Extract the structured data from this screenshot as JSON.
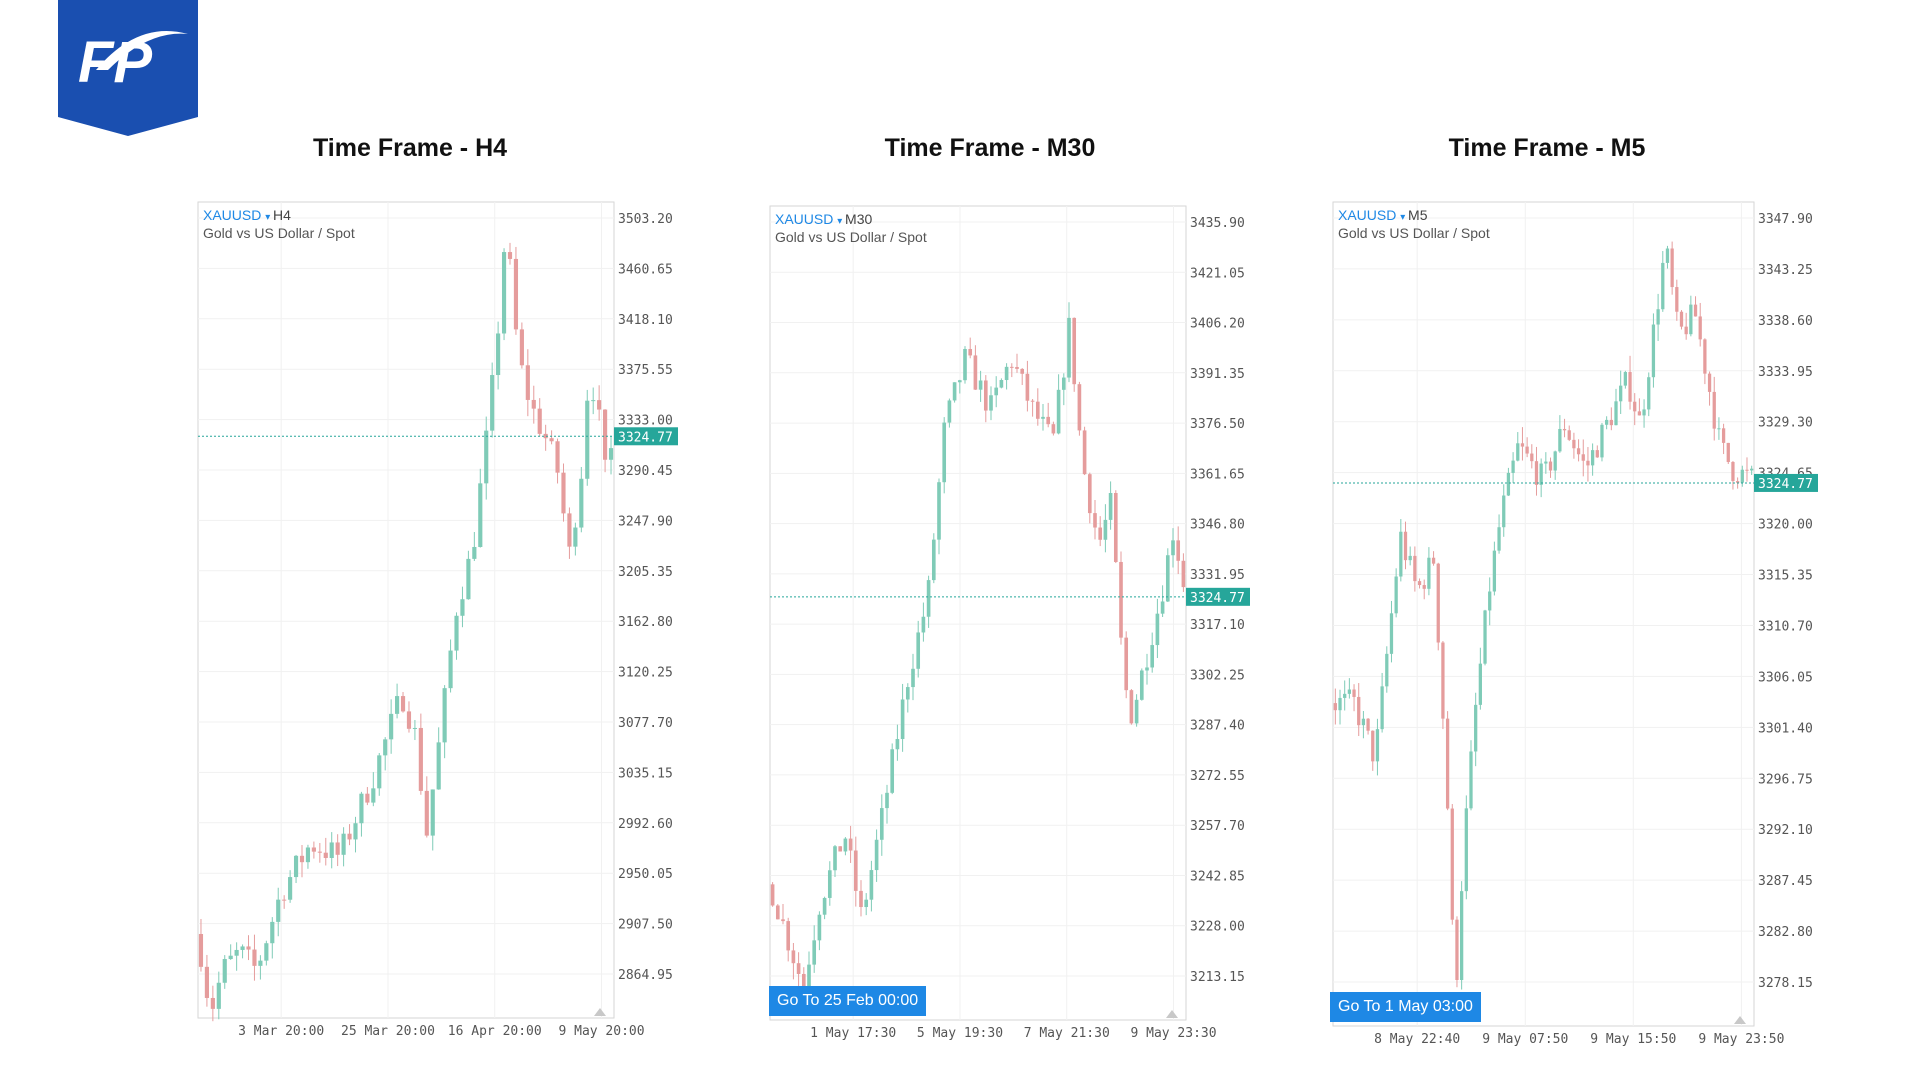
{
  "brand": {
    "logo_color": "#1a4fb0"
  },
  "colors": {
    "up": "#7fcbb7",
    "down": "#e59c9c",
    "price_tag": "#26a69a",
    "goto": "#1e88e5"
  },
  "chart_data": [
    {
      "type": "candlestick",
      "title": "Time Frame - H4",
      "symbol": "XAUUSD",
      "timeframe": "H4",
      "description": "Gold vs US Dollar / Spot",
      "current_price": 3324.77,
      "current_price_label": "3324.77",
      "y_ticks": [
        "3503.20",
        "3460.65",
        "3418.10",
        "3375.55",
        "3333.00",
        "3290.45",
        "3247.90",
        "3205.35",
        "3162.80",
        "3120.25",
        "3077.70",
        "3035.15",
        "2992.60",
        "2950.05",
        "2907.50",
        "2864.95"
      ],
      "x_ticks": [
        "3 Mar 20:00",
        "25 Mar 20:00",
        "16 Apr 20:00",
        "9 May 20:00"
      ],
      "ylim": [
        2840,
        3520
      ],
      "trend": [
        [
          0,
          2910
        ],
        [
          0.03,
          2845
        ],
        [
          0.06,
          2880
        ],
        [
          0.1,
          2895
        ],
        [
          0.14,
          2880
        ],
        [
          0.2,
          2945
        ],
        [
          0.27,
          2985
        ],
        [
          0.34,
          2975
        ],
        [
          0.42,
          3040
        ],
        [
          0.49,
          3110
        ],
        [
          0.52,
          3080
        ],
        [
          0.55,
          2995
        ],
        [
          0.58,
          3070
        ],
        [
          0.62,
          3180
        ],
        [
          0.66,
          3230
        ],
        [
          0.7,
          3340
        ],
        [
          0.72,
          3410
        ],
        [
          0.74,
          3500
        ],
        [
          0.77,
          3390
        ],
        [
          0.8,
          3350
        ],
        [
          0.84,
          3320
        ],
        [
          0.87,
          3290
        ],
        [
          0.89,
          3220
        ],
        [
          0.92,
          3290
        ],
        [
          0.94,
          3380
        ],
        [
          0.96,
          3350
        ],
        [
          0.98,
          3290
        ],
        [
          1,
          3325
        ]
      ]
    },
    {
      "type": "candlestick",
      "title": "Time Frame - M30",
      "symbol": "XAUUSD",
      "timeframe": "M30",
      "description": "Gold vs US Dollar / Spot",
      "current_price": 3324.77,
      "current_price_label": "3324.77",
      "y_ticks": [
        "3435.90",
        "3421.05",
        "3406.20",
        "3391.35",
        "3376.50",
        "3361.65",
        "3346.80",
        "3331.95",
        "3317.10",
        "3302.25",
        "3287.40",
        "3272.55",
        "3257.70",
        "3242.85",
        "3228.00",
        "3213.15"
      ],
      "x_ticks": [
        "1 May 17:30",
        "5 May 19:30",
        "7 May 21:30",
        "9 May 23:30"
      ],
      "ylim": [
        3200,
        3440
      ],
      "goto_label": "Go To 25 Feb 00:00",
      "trend": [
        [
          0,
          3240
        ],
        [
          0.04,
          3225
        ],
        [
          0.08,
          3210
        ],
        [
          0.12,
          3235
        ],
        [
          0.18,
          3255
        ],
        [
          0.22,
          3230
        ],
        [
          0.27,
          3260
        ],
        [
          0.33,
          3300
        ],
        [
          0.38,
          3325
        ],
        [
          0.42,
          3375
        ],
        [
          0.47,
          3395
        ],
        [
          0.53,
          3380
        ],
        [
          0.58,
          3395
        ],
        [
          0.63,
          3380
        ],
        [
          0.68,
          3370
        ],
        [
          0.72,
          3405
        ],
        [
          0.75,
          3365
        ],
        [
          0.79,
          3340
        ],
        [
          0.82,
          3352
        ],
        [
          0.85,
          3300
        ],
        [
          0.87,
          3290
        ],
        [
          0.9,
          3305
        ],
        [
          0.94,
          3325
        ],
        [
          0.97,
          3345
        ],
        [
          1,
          3325
        ]
      ]
    },
    {
      "type": "candlestick",
      "title": "Time Frame - M5",
      "symbol": "XAUUSD",
      "timeframe": "M5",
      "description": "Gold vs US Dollar / Spot",
      "current_price": 3324.77,
      "current_price_label": "3324.77",
      "y_ticks": [
        "3347.90",
        "3343.25",
        "3338.60",
        "3333.95",
        "3329.30",
        "3324.65",
        "3320.00",
        "3315.35",
        "3310.70",
        "3306.05",
        "3301.40",
        "3296.75",
        "3292.10",
        "3287.45",
        "3282.80",
        "3278.15"
      ],
      "x_ticks": [
        "8 May 22:40",
        "9 May 07:50",
        "9 May 15:50",
        "9 May 23:50"
      ],
      "ylim": [
        3276,
        3350
      ],
      "goto_label": "Go To 1 May 03:00",
      "trend": [
        [
          0,
          3305
        ],
        [
          0.05,
          3305
        ],
        [
          0.1,
          3300
        ],
        [
          0.16,
          3320
        ],
        [
          0.2,
          3315
        ],
        [
          0.24,
          3318
        ],
        [
          0.27,
          3298
        ],
        [
          0.29,
          3278
        ],
        [
          0.31,
          3292
        ],
        [
          0.34,
          3305
        ],
        [
          0.37,
          3315
        ],
        [
          0.4,
          3322
        ],
        [
          0.44,
          3328
        ],
        [
          0.5,
          3325
        ],
        [
          0.55,
          3330
        ],
        [
          0.6,
          3326
        ],
        [
          0.65,
          3330
        ],
        [
          0.7,
          3334
        ],
        [
          0.73,
          3330
        ],
        [
          0.76,
          3338
        ],
        [
          0.79,
          3346
        ],
        [
          0.82,
          3338
        ],
        [
          0.86,
          3340
        ],
        [
          0.89,
          3334
        ],
        [
          0.92,
          3328
        ],
        [
          0.95,
          3326
        ],
        [
          1,
          3325
        ]
      ]
    }
  ]
}
